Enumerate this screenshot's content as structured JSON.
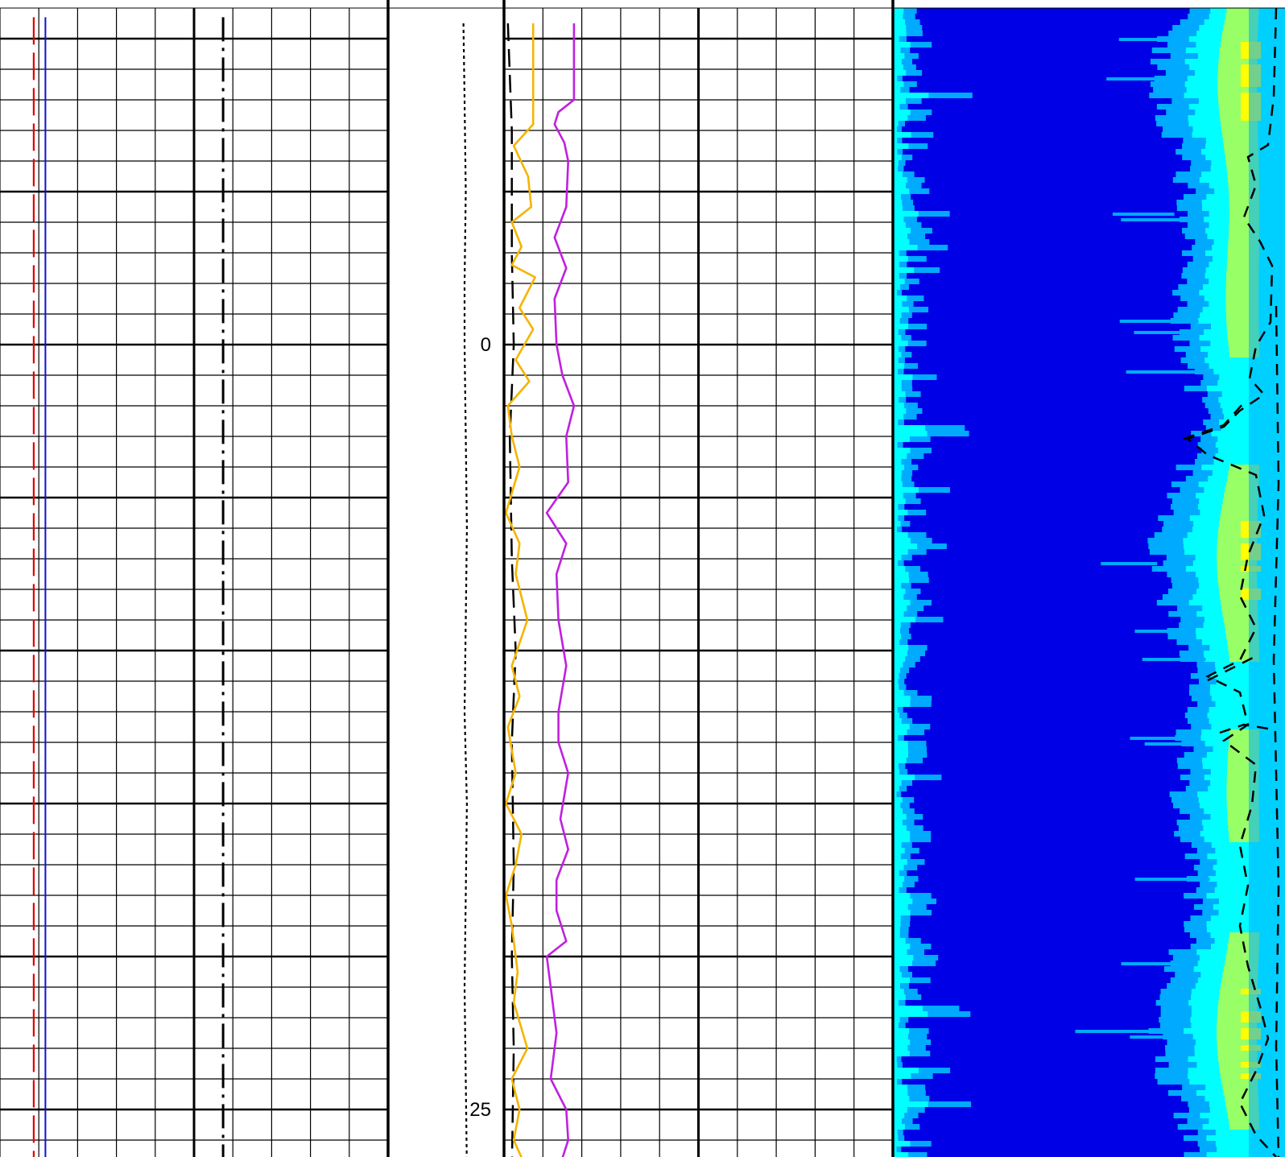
{
  "chart_data": {
    "type": "line",
    "title": "",
    "depth_axis": {
      "tick_labels": [
        "0",
        "25"
      ],
      "range_visible": [
        -10.7,
        27.0
      ],
      "major_step": 5,
      "minor_step": 1
    },
    "tracks": [
      {
        "id": "track-1",
        "grid": true,
        "series": [
          {
            "style": "red-long-dash",
            "color": "#e00000",
            "x_fraction": 0.087
          },
          {
            "style": "blue-solid",
            "color": "#1010d0",
            "x_fraction": 0.117
          },
          {
            "style": "black-dash-dot",
            "color": "#000000",
            "x_fraction": 0.575
          }
        ]
      },
      {
        "id": "depth-track",
        "series": [
          {
            "style": "black-dotted",
            "color": "#000000",
            "depths": [
              -10.5,
              -8,
              -5,
              -2,
              0,
              3,
              6,
              9,
              12,
              15,
              18,
              21,
              24,
              27
            ],
            "x_fraction": [
              0.65,
              0.66,
              0.67,
              0.66,
              0.66,
              0.67,
              0.68,
              0.67,
              0.66,
              0.68,
              0.67,
              0.66,
              0.67,
              0.68
            ]
          }
        ]
      },
      {
        "id": "track-2",
        "grid": true,
        "series": [
          {
            "name": "",
            "color": "#f5b400",
            "depths": [
              -10.5,
              -9,
              -7.2,
              -6.5,
              -5.5,
              -4.5,
              -4.0,
              -3.2,
              -2.6,
              -2.2,
              -1.2,
              -0.5,
              0.5,
              1.2,
              2.0,
              3.0,
              4.0,
              5.5,
              6.5,
              7.5,
              9.0,
              10.5,
              11.5,
              12.5,
              14.0,
              15.0,
              16.0,
              17.0,
              18.0,
              19.0,
              20.5,
              21.5,
              23.0,
              24.0,
              25.0,
              26.0,
              27.0
            ],
            "x_fraction": [
              0.075,
              0.075,
              0.075,
              0.025,
              0.062,
              0.07,
              0.02,
              0.045,
              0.02,
              0.08,
              0.04,
              0.075,
              0.03,
              0.065,
              0.01,
              0.02,
              0.04,
              0.005,
              0.04,
              0.03,
              0.06,
              0.02,
              0.04,
              0.01,
              0.03,
              0.005,
              0.045,
              0.03,
              0.005,
              0.02,
              0.035,
              0.025,
              0.06,
              0.02,
              0.04,
              0.025,
              0.06
            ]
          },
          {
            "name": "",
            "color": "#c020e0",
            "depths": [
              -10.5,
              -8.0,
              -7.6,
              -7.2,
              -6.6,
              -6.0,
              -4.5,
              -3.5,
              -2.5,
              -1.5,
              0.0,
              1.0,
              2.0,
              3.0,
              4.5,
              5.5,
              6.5,
              7.5,
              9.0,
              10.5,
              12.0,
              13.0,
              14.0,
              15.5,
              16.5,
              17.5,
              18.5,
              19.5,
              20.0,
              21.0,
              22.5,
              24.0,
              25.0,
              26.0,
              27.0
            ],
            "x_fraction": [
              0.18,
              0.18,
              0.14,
              0.13,
              0.155,
              0.165,
              0.16,
              0.13,
              0.16,
              0.13,
              0.135,
              0.15,
              0.18,
              0.16,
              0.165,
              0.11,
              0.16,
              0.135,
              0.14,
              0.16,
              0.14,
              0.14,
              0.165,
              0.145,
              0.165,
              0.135,
              0.135,
              0.16,
              0.11,
              0.12,
              0.135,
              0.12,
              0.16,
              0.165,
              0.14
            ]
          },
          {
            "style": "black-long-dash",
            "color": "#000000",
            "depths": [
              -10.5,
              -7,
              -3,
              0,
              3,
              7,
              10,
              13,
              17,
              20,
              23,
              27
            ],
            "x_fraction": [
              0.01,
              0.02,
              0.02,
              0.025,
              0.015,
              0.02,
              0.03,
              0.02,
              0.025,
              0.02,
              0.025,
              0.02
            ]
          }
        ]
      },
      {
        "id": "image-track",
        "type": "heatmap",
        "colormap": [
          "#0000e6",
          "#00aaff",
          "#00ffff",
          "#99ff66",
          "#ffff00"
        ],
        "background": "#0000e6",
        "series": [
          {
            "style": "black-dashed-contour",
            "color": "#000000"
          }
        ]
      }
    ]
  }
}
